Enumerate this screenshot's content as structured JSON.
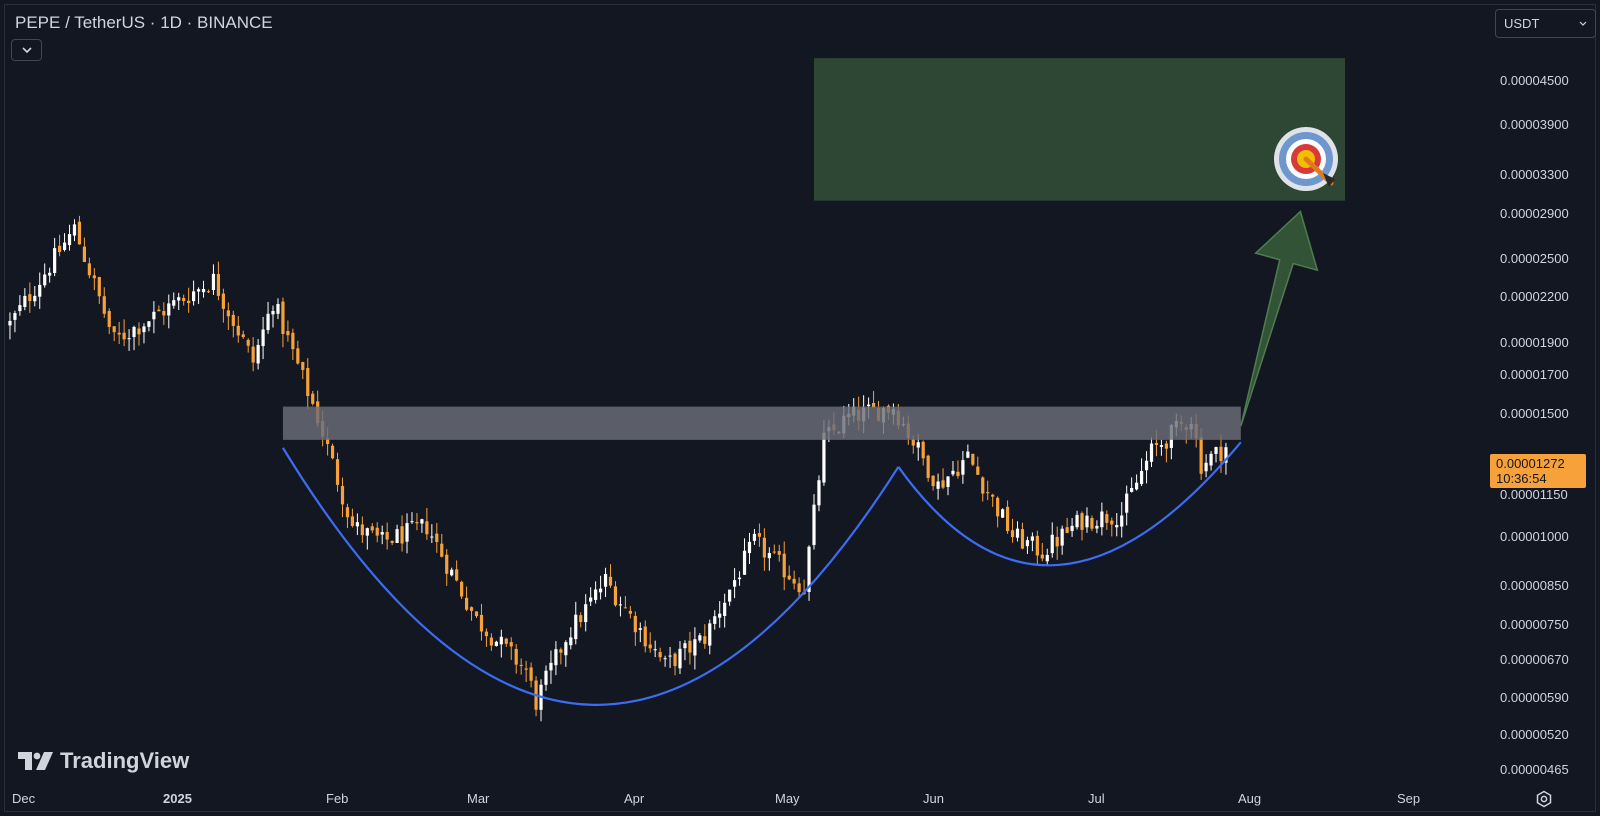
{
  "header": {
    "symbol_title": "PEPE / TetherUS · 1D · BINANCE",
    "currency": "USDT"
  },
  "price_axis": {
    "labels": [
      "0.00004500",
      "0.00003900",
      "0.00003300",
      "0.00002900",
      "0.00002500",
      "0.00002200",
      "0.00001900",
      "0.00001700",
      "0.00001500",
      "0.00001150",
      "0.00001000",
      "0.00000850",
      "0.00000750",
      "0.00000670",
      "0.00000590",
      "0.00000520",
      "0.00000465"
    ],
    "last_price": "0.00001272",
    "countdown": "10:36:54"
  },
  "time_axis": {
    "labels": [
      "Dec",
      "2025",
      "Feb",
      "Mar",
      "Apr",
      "May",
      "Jun",
      "Jul",
      "Aug",
      "Sep"
    ]
  },
  "branding": {
    "logo_text": "TradingView"
  },
  "colors": {
    "background": "#131722",
    "candle_up": "#ffffff",
    "candle_down": "#f7a13a",
    "target_zone": "#2e4634",
    "resistance_band": "#6b6e78",
    "cup_curve": "#3d6cf0",
    "arrow": "#3a5e3a"
  },
  "chart_data": {
    "type": "candlestick",
    "symbol": "PEPE / TetherUS",
    "interval": "1D",
    "exchange": "BINANCE",
    "y_scale": "log",
    "ylim": [
      4.4e-06,
      4.75e-05
    ],
    "x_range": [
      "2024-11-25",
      "2025-09-20"
    ],
    "anchors": [
      {
        "date": "2024-11-26",
        "price": 1.9e-05
      },
      {
        "date": "2024-12-09",
        "price": 2.6e-05
      },
      {
        "date": "2024-12-17",
        "price": 1.8e-05
      },
      {
        "date": "2025-01-06",
        "price": 2.2e-05
      },
      {
        "date": "2025-01-14",
        "price": 1.68e-05
      },
      {
        "date": "2025-01-18",
        "price": 2.05e-05
      },
      {
        "date": "2025-01-27",
        "price": 1.4e-05
      },
      {
        "date": "2025-02-03",
        "price": 9.8e-06
      },
      {
        "date": "2025-02-09",
        "price": 9.3e-06
      },
      {
        "date": "2025-02-18",
        "price": 9.8e-06
      },
      {
        "date": "2025-02-28",
        "price": 7.2e-06
      },
      {
        "date": "2025-03-10",
        "price": 6.1e-06
      },
      {
        "date": "2025-03-12",
        "price": 5.5e-06
      },
      {
        "date": "2025-03-18",
        "price": 6.8e-06
      },
      {
        "date": "2025-03-26",
        "price": 8.2e-06
      },
      {
        "date": "2025-04-07",
        "price": 6.2e-06
      },
      {
        "date": "2025-04-15",
        "price": 6.8e-06
      },
      {
        "date": "2025-04-25",
        "price": 9.3e-06
      },
      {
        "date": "2025-05-05",
        "price": 8e-06
      },
      {
        "date": "2025-05-09",
        "price": 1.3e-05
      },
      {
        "date": "2025-05-14",
        "price": 1.4e-05
      },
      {
        "date": "2025-05-23",
        "price": 1.45e-05
      },
      {
        "date": "2025-06-01",
        "price": 1.12e-05
      },
      {
        "date": "2025-06-07",
        "price": 1.23e-05
      },
      {
        "date": "2025-06-16",
        "price": 9.5e-06
      },
      {
        "date": "2025-06-22",
        "price": 9e-06
      },
      {
        "date": "2025-06-30",
        "price": 1e-05
      },
      {
        "date": "2025-07-08",
        "price": 1.02e-05
      },
      {
        "date": "2025-07-14",
        "price": 1.25e-05
      },
      {
        "date": "2025-07-22",
        "price": 1.4e-05
      },
      {
        "date": "2025-07-24",
        "price": 1.2e-05
      },
      {
        "date": "2025-07-29",
        "price": 1.27e-05
      }
    ],
    "annotations": {
      "resistance_zone": {
        "from": "2025-01-20",
        "to": "2025-08-01",
        "low": 1.3e-05,
        "high": 1.45e-05
      },
      "target_zone": {
        "from": "2025-05-07",
        "to": "2025-08-22",
        "low": 2.85e-05,
        "high": 4.55e-05
      },
      "cup": {
        "from": "2025-01-20",
        "bottom_date": "2025-03-23",
        "bottom_price": 5.3e-06,
        "to": "2025-05-24",
        "end_price": 1.19e-05
      },
      "handle": {
        "from": "2025-05-24",
        "bottom_date": "2025-06-23",
        "bottom_price": 8.3e-06,
        "to": "2025-08-01",
        "end_price": 1.29e-05
      },
      "breakout_arrow": {
        "from_date": "2025-08-01",
        "from_price": 1.36e-05,
        "to_date": "2025-08-13",
        "to_price": 2.75e-05
      }
    }
  }
}
